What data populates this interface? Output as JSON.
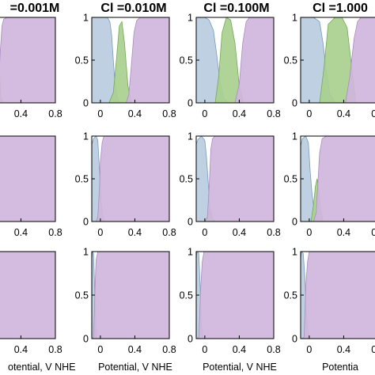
{
  "chart_data": {
    "type": "area",
    "layout": "3x4-grid",
    "xlim": [
      -0.1,
      0.8
    ],
    "ylim": [
      0,
      1
    ],
    "x_ticks": [
      "0",
      "0.4",
      "0.8"
    ],
    "x_ticks_left_column": [
      "0.4",
      "0.8"
    ],
    "y_ticks": [
      "0",
      "0.5",
      "1"
    ],
    "column_titles": [
      "=0.001M",
      "Cl =0.010M",
      "Cl =0.100M",
      "Cl =1.000"
    ],
    "xlabel": "Potential, V NHE",
    "xlabel_left_column": "otential, V NHE",
    "xlabel_right_column": "Potentia",
    "series_colors": {
      "blue": "#b9cce0",
      "green": "#a9cf8e",
      "purple": "#cfb6dc"
    },
    "panels": [
      {
        "row": 0,
        "col": 0,
        "series": [
          {
            "color": "blue",
            "x": [
              -0.1,
              0.0,
              0.02,
              0.04,
              0.06,
              0.08,
              0.1,
              0.12,
              0.14
            ],
            "y": [
              1,
              1,
              0.97,
              0.82,
              0.5,
              0.22,
              0.08,
              0.02,
              0
            ]
          },
          {
            "color": "green",
            "x": [
              0.04,
              0.08,
              0.11,
              0.13,
              0.15,
              0.17,
              0.2
            ],
            "y": [
              0,
              0.05,
              0.35,
              0.6,
              0.35,
              0.05,
              0
            ]
          },
          {
            "color": "purple",
            "x": [
              0.1,
              0.12,
              0.14,
              0.16,
              0.18,
              0.2,
              0.24,
              0.8
            ],
            "y": [
              0,
              0.02,
              0.18,
              0.6,
              0.9,
              0.98,
              1,
              1
            ]
          }
        ]
      },
      {
        "row": 0,
        "col": 1,
        "series": [
          {
            "color": "blue",
            "x": [
              -0.1,
              0.08,
              0.11,
              0.13,
              0.15,
              0.17,
              0.2,
              0.23
            ],
            "y": [
              1,
              1,
              0.95,
              0.8,
              0.5,
              0.22,
              0.05,
              0
            ]
          },
          {
            "color": "green",
            "x": [
              0.1,
              0.15,
              0.19,
              0.22,
              0.25,
              0.28,
              0.32,
              0.36
            ],
            "y": [
              0,
              0.12,
              0.55,
              0.9,
              0.95,
              0.7,
              0.2,
              0
            ]
          },
          {
            "color": "purple",
            "x": [
              0.3,
              0.33,
              0.36,
              0.39,
              0.42,
              0.46,
              0.8
            ],
            "y": [
              0,
              0.1,
              0.45,
              0.82,
              0.96,
              1,
              1
            ]
          }
        ]
      },
      {
        "row": 0,
        "col": 2,
        "series": [
          {
            "color": "blue",
            "x": [
              -0.1,
              0.0,
              0.05,
              0.1,
              0.14,
              0.18,
              0.22,
              0.28
            ],
            "y": [
              1,
              1,
              0.97,
              0.85,
              0.55,
              0.22,
              0.05,
              0
            ]
          },
          {
            "color": "green",
            "x": [
              0.12,
              0.16,
              0.2,
              0.25,
              0.3,
              0.35,
              0.4,
              0.45
            ],
            "y": [
              0,
              0.3,
              0.82,
              1,
              0.97,
              0.7,
              0.2,
              0
            ]
          },
          {
            "color": "purple",
            "x": [
              0.35,
              0.4,
              0.44,
              0.48,
              0.52,
              0.8
            ],
            "y": [
              0,
              0.22,
              0.7,
              0.95,
              1,
              1
            ]
          }
        ]
      },
      {
        "row": 0,
        "col": 3,
        "series": [
          {
            "color": "blue",
            "x": [
              -0.1,
              0.05,
              0.12,
              0.16,
              0.2,
              0.24,
              0.3
            ],
            "y": [
              1,
              1,
              0.95,
              0.7,
              0.35,
              0.1,
              0
            ]
          },
          {
            "color": "green",
            "x": [
              0.12,
              0.17,
              0.22,
              0.3,
              0.38,
              0.44,
              0.5,
              0.54
            ],
            "y": [
              0,
              0.4,
              0.92,
              1,
              1,
              0.88,
              0.35,
              0
            ]
          },
          {
            "color": "purple",
            "x": [
              0.42,
              0.47,
              0.52,
              0.56,
              0.6,
              0.8
            ],
            "y": [
              0,
              0.3,
              0.75,
              0.95,
              1,
              1
            ]
          }
        ]
      },
      {
        "row": 1,
        "col": 0,
        "series": [
          {
            "color": "blue",
            "x": [
              -0.1,
              -0.03,
              -0.01,
              0.01,
              0.02,
              0.03,
              0.04,
              0.05
            ],
            "y": [
              1,
              1,
              0.95,
              0.75,
              0.5,
              0.25,
              0.08,
              0
            ]
          },
          {
            "color": "purple",
            "x": [
              -0.02,
              0.0,
              0.02,
              0.03,
              0.04,
              0.06,
              0.08,
              0.8
            ],
            "y": [
              0,
              0.05,
              0.3,
              0.55,
              0.8,
              0.95,
              1,
              1
            ]
          }
        ]
      },
      {
        "row": 1,
        "col": 1,
        "series": [
          {
            "color": "blue",
            "x": [
              -0.1,
              -0.08,
              -0.05,
              -0.03,
              -0.01,
              0.01,
              0.03,
              0.05
            ],
            "y": [
              0.9,
              0.97,
              1,
              0.95,
              0.6,
              0.22,
              0.05,
              0
            ]
          },
          {
            "color": "purple",
            "x": [
              -0.05,
              -0.03,
              -0.01,
              0.0,
              0.02,
              0.04,
              0.8
            ],
            "y": [
              0,
              0.05,
              0.4,
              0.7,
              0.92,
              1,
              1
            ]
          }
        ]
      },
      {
        "row": 1,
        "col": 2,
        "series": [
          {
            "color": "blue",
            "x": [
              -0.1,
              -0.08,
              -0.04,
              0.0,
              0.02,
              0.04,
              0.06,
              0.1
            ],
            "y": [
              0.9,
              0.96,
              1,
              0.95,
              0.75,
              0.45,
              0.15,
              0
            ]
          },
          {
            "color": "green",
            "x": [
              0.0,
              0.03,
              0.05,
              0.06,
              0.07,
              0.09,
              0.12
            ],
            "y": [
              0,
              0.04,
              0.12,
              0.15,
              0.12,
              0.04,
              0
            ]
          },
          {
            "color": "purple",
            "x": [
              0.0,
              0.03,
              0.05,
              0.07,
              0.09,
              0.12,
              0.8
            ],
            "y": [
              0,
              0.05,
              0.4,
              0.85,
              0.97,
              1,
              1
            ]
          }
        ]
      },
      {
        "row": 1,
        "col": 3,
        "series": [
          {
            "color": "blue",
            "x": [
              -0.1,
              -0.08,
              -0.04,
              -0.01,
              0.01,
              0.03,
              0.06,
              0.1
            ],
            "y": [
              0.88,
              0.97,
              1,
              0.92,
              0.6,
              0.35,
              0.1,
              0
            ]
          },
          {
            "color": "green",
            "x": [
              0.02,
              0.05,
              0.07,
              0.09,
              0.11,
              0.13,
              0.16
            ],
            "y": [
              0,
              0.2,
              0.4,
              0.5,
              0.38,
              0.15,
              0
            ]
          },
          {
            "color": "purple",
            "x": [
              0.05,
              0.08,
              0.1,
              0.12,
              0.15,
              0.2,
              0.8
            ],
            "y": [
              0,
              0.1,
              0.45,
              0.8,
              0.97,
              1,
              1
            ]
          }
        ]
      },
      {
        "row": 2,
        "col": 0,
        "series": [
          {
            "color": "blue",
            "x": [
              -0.1,
              -0.09,
              -0.08
            ],
            "y": [
              1,
              0.5,
              0
            ]
          },
          {
            "color": "purple",
            "x": [
              -0.1,
              -0.09,
              -0.08,
              0.8
            ],
            "y": [
              0,
              0.5,
              1,
              1
            ]
          }
        ]
      },
      {
        "row": 2,
        "col": 1,
        "series": [
          {
            "color": "blue",
            "x": [
              -0.1,
              -0.09,
              -0.08,
              -0.07,
              -0.06,
              -0.05,
              -0.04
            ],
            "y": [
              0.92,
              1,
              0.98,
              0.7,
              0.35,
              0.1,
              0
            ]
          },
          {
            "color": "purple",
            "x": [
              -0.09,
              -0.08,
              -0.07,
              -0.06,
              -0.05,
              -0.03,
              0.8
            ],
            "y": [
              0,
              0.02,
              0.3,
              0.65,
              0.9,
              1,
              1
            ]
          }
        ]
      },
      {
        "row": 2,
        "col": 2,
        "series": [
          {
            "color": "blue",
            "x": [
              -0.1,
              -0.09,
              -0.07,
              -0.06,
              -0.05,
              -0.04,
              -0.02
            ],
            "y": [
              0.92,
              1,
              0.98,
              0.75,
              0.45,
              0.15,
              0
            ]
          },
          {
            "color": "purple",
            "x": [
              -0.09,
              -0.07,
              -0.06,
              -0.05,
              -0.03,
              -0.01,
              0.8
            ],
            "y": [
              0,
              0.02,
              0.25,
              0.55,
              0.88,
              1,
              1
            ]
          }
        ]
      },
      {
        "row": 2,
        "col": 3,
        "series": [
          {
            "color": "blue",
            "x": [
              -0.1,
              -0.09,
              -0.07,
              -0.05,
              -0.04,
              -0.02,
              0.0
            ],
            "y": [
              0.92,
              1,
              0.98,
              0.7,
              0.4,
              0.12,
              0
            ]
          },
          {
            "color": "purple",
            "x": [
              -0.08,
              -0.06,
              -0.05,
              -0.04,
              -0.02,
              0.0,
              0.8
            ],
            "y": [
              0,
              0.02,
              0.3,
              0.6,
              0.88,
              1,
              1
            ]
          }
        ]
      }
    ]
  }
}
